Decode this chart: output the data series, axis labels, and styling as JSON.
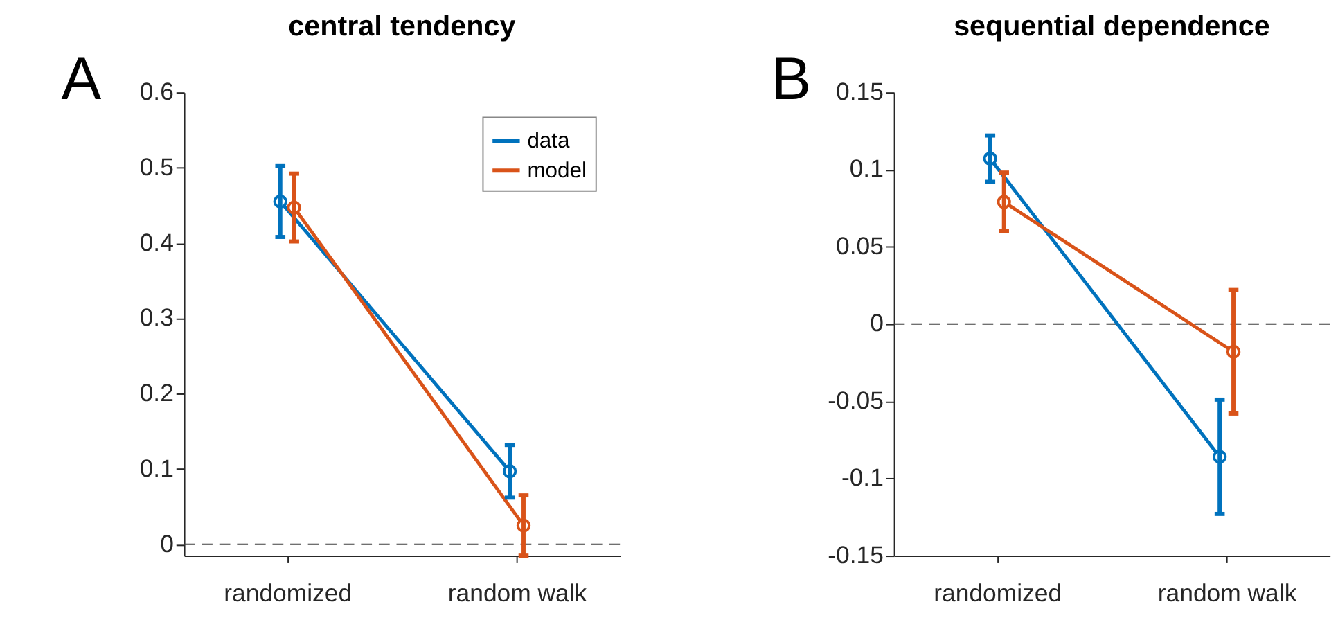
{
  "chart_data": [
    {
      "type": "line",
      "title": "central tendency",
      "annotations": [
        "A"
      ],
      "categories": [
        "randomized",
        "random walk"
      ],
      "series": [
        {
          "name": "data",
          "color": "#0072bd",
          "values": [
            0.455,
            0.097
          ],
          "errors": [
            0.047,
            0.035
          ]
        },
        {
          "name": "model",
          "color": "#d95319",
          "values": [
            0.447,
            0.025
          ],
          "errors": [
            0.045,
            0.04
          ]
        }
      ],
      "ylim": [
        -0.015,
        0.6
      ],
      "yticks": [
        0,
        0.1,
        0.2,
        0.3,
        0.4,
        0.5,
        0.6
      ],
      "grid": false,
      "legend": "top right",
      "marker": "circle",
      "line_style": "solid",
      "ref_lines": [
        {
          "axis": "y",
          "value": 0,
          "line_style": "dashed",
          "color": "#404040"
        }
      ]
    },
    {
      "type": "line",
      "title": "sequential dependence",
      "annotations": [
        "B"
      ],
      "categories": [
        "randomized",
        "random walk"
      ],
      "series": [
        {
          "color": "#0072bd",
          "values": [
            0.107,
            -0.086
          ],
          "errors": [
            0.015,
            0.037
          ]
        },
        {
          "color": "#d95319",
          "values": [
            0.079,
            -0.018
          ],
          "errors": [
            0.019,
            0.04
          ]
        }
      ],
      "ylim": [
        -0.15,
        0.15
      ],
      "yticks": [
        -0.15,
        -0.1,
        -0.05,
        0,
        0.05,
        0.1,
        0.15
      ],
      "grid": false,
      "legend": false,
      "marker": "circle",
      "line_style": "solid",
      "ref_lines": [
        {
          "axis": "y",
          "value": 0,
          "line_style": "dashed",
          "color": "#404040"
        }
      ]
    }
  ]
}
